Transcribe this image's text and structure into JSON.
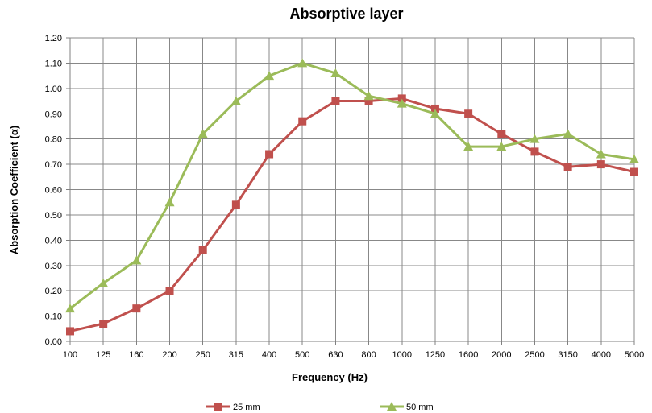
{
  "chart_data": {
    "type": "line",
    "title": "Absorptive layer",
    "xlabel": "Frequency (Hz)",
    "ylabel": "Absorption Coefficient (α)",
    "categories": [
      "100",
      "125",
      "160",
      "200",
      "250",
      "315",
      "400",
      "500",
      "630",
      "800",
      "1000",
      "1250",
      "1600",
      "2000",
      "2500",
      "3150",
      "4000",
      "5000"
    ],
    "y_ticks": [
      "0.00",
      "0.10",
      "0.20",
      "0.30",
      "0.40",
      "0.50",
      "0.60",
      "0.70",
      "0.80",
      "0.90",
      "1.00",
      "1.10",
      "1.20"
    ],
    "ylim": [
      0,
      1.2
    ],
    "grid": true,
    "legend_position": "bottom",
    "series": [
      {
        "name": "25 mm",
        "color": "#c0504d",
        "marker": "square",
        "values": [
          0.04,
          0.07,
          0.13,
          0.2,
          0.36,
          0.54,
          0.74,
          0.87,
          0.95,
          0.95,
          0.96,
          0.92,
          0.9,
          0.82,
          0.75,
          0.69,
          0.7,
          0.67
        ]
      },
      {
        "name": "50 mm",
        "color": "#9bbb59",
        "marker": "triangle",
        "values": [
          0.13,
          0.23,
          0.32,
          0.55,
          0.82,
          0.95,
          1.05,
          1.1,
          1.06,
          0.97,
          0.94,
          0.9,
          0.77,
          0.77,
          0.8,
          0.82,
          0.74,
          0.72
        ]
      }
    ]
  }
}
